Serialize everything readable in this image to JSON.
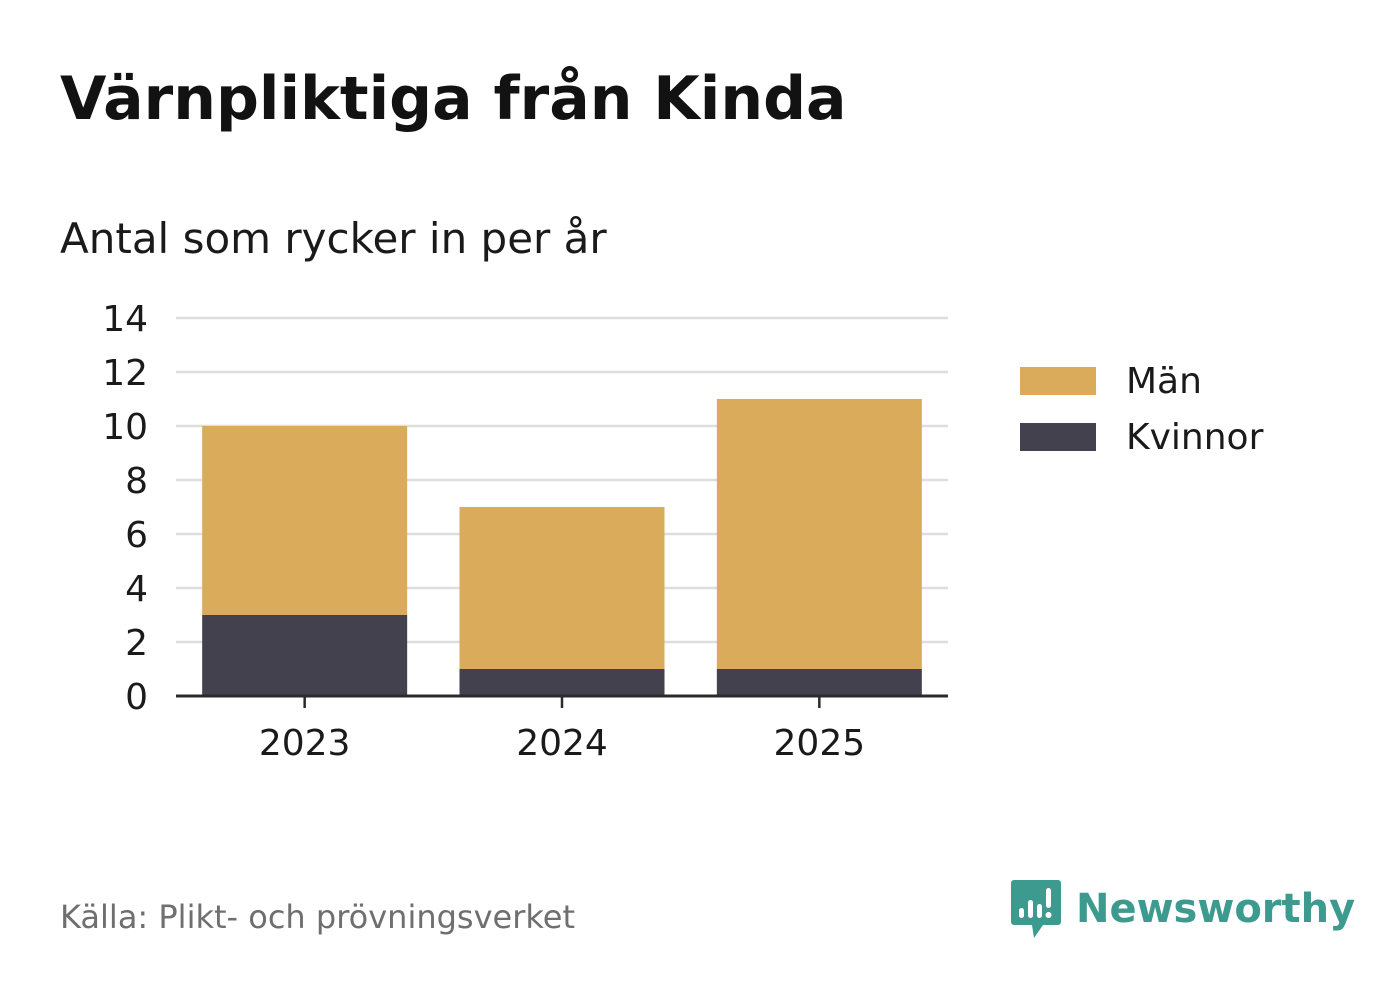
{
  "title": "Värnpliktiga från Kinda",
  "subtitle": "Antal som rycker in per år",
  "source": "Källa: Plikt- och prövningsverket",
  "brand": {
    "name": "Newsworthy",
    "icon": "newsworthy-logo-icon"
  },
  "colors": {
    "man": "#d9ab5a",
    "kvinnor": "#44414f",
    "grid": "#dedede",
    "axis": "#2b2b2b",
    "text": "#1a1a1a",
    "brand": "#3c9a8e"
  },
  "legend": [
    {
      "label": "Män",
      "color": "#d9ab5a"
    },
    {
      "label": "Kvinnor",
      "color": "#44414f"
    }
  ],
  "chart_data": {
    "type": "bar",
    "stacked": true,
    "categories": [
      "2023",
      "2024",
      "2025"
    ],
    "series": [
      {
        "name": "Kvinnor",
        "values": [
          3,
          1,
          1
        ]
      },
      {
        "name": "Män",
        "values": [
          7,
          6,
          10
        ]
      }
    ],
    "ylim": [
      0,
      14
    ],
    "yticks": [
      0,
      2,
      4,
      6,
      8,
      10,
      12,
      14
    ],
    "grid": true,
    "legend_position": "right"
  }
}
